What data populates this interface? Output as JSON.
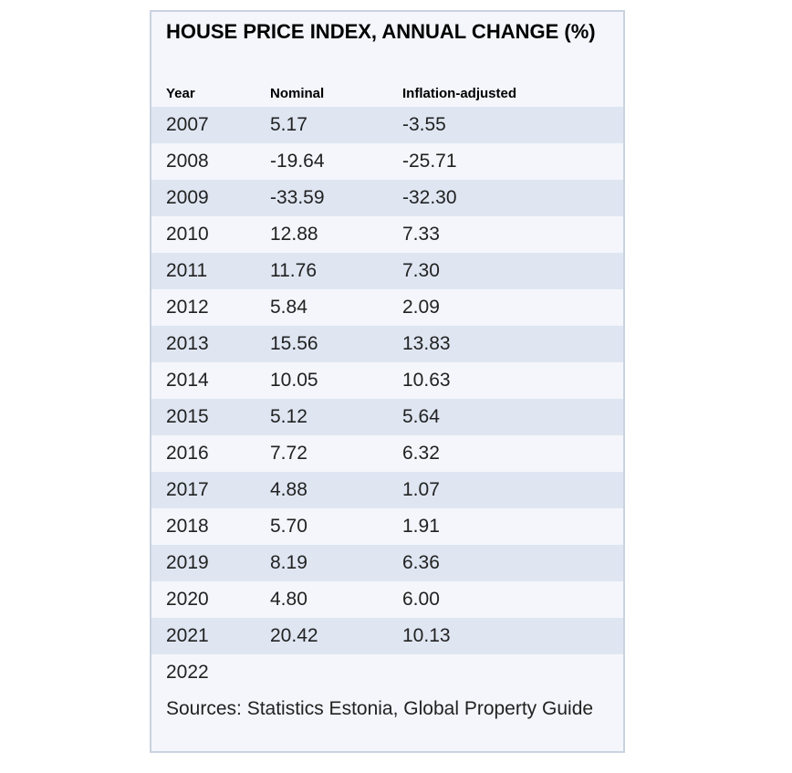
{
  "chart_data": {
    "type": "table",
    "title": "HOUSE PRICE INDEX, ANNUAL CHANGE (%)",
    "columns": [
      "Year",
      "Nominal",
      "Inflation-adjusted"
    ],
    "rows": [
      {
        "year": "2007",
        "nominal": "5.17",
        "adjusted": "-3.55"
      },
      {
        "year": "2008",
        "nominal": "-19.64",
        "adjusted": "-25.71"
      },
      {
        "year": "2009",
        "nominal": "-33.59",
        "adjusted": "-32.30"
      },
      {
        "year": "2010",
        "nominal": "12.88",
        "adjusted": "7.33"
      },
      {
        "year": "2011",
        "nominal": "11.76",
        "adjusted": "7.30"
      },
      {
        "year": "2012",
        "nominal": "5.84",
        "adjusted": "2.09"
      },
      {
        "year": "2013",
        "nominal": "15.56",
        "adjusted": "13.83"
      },
      {
        "year": "2014",
        "nominal": "10.05",
        "adjusted": "10.63"
      },
      {
        "year": "2015",
        "nominal": "5.12",
        "adjusted": "5.64"
      },
      {
        "year": "2016",
        "nominal": "7.72",
        "adjusted": "6.32"
      },
      {
        "year": "2017",
        "nominal": "4.88",
        "adjusted": "1.07"
      },
      {
        "year": "2018",
        "nominal": "5.70",
        "adjusted": "1.91"
      },
      {
        "year": "2019",
        "nominal": "8.19",
        "adjusted": "6.36"
      },
      {
        "year": "2020",
        "nominal": "4.80",
        "adjusted": "6.00"
      },
      {
        "year": "2021",
        "nominal": "20.42",
        "adjusted": "10.13"
      },
      {
        "year": "2022",
        "nominal": "",
        "adjusted": ""
      }
    ],
    "source": "Sources: Statistics Estonia, Global Property Guide",
    "colors": {
      "panel_background": "#f4f6fb",
      "stripe": "#dfe6f2",
      "border": "#c9d2df"
    }
  }
}
